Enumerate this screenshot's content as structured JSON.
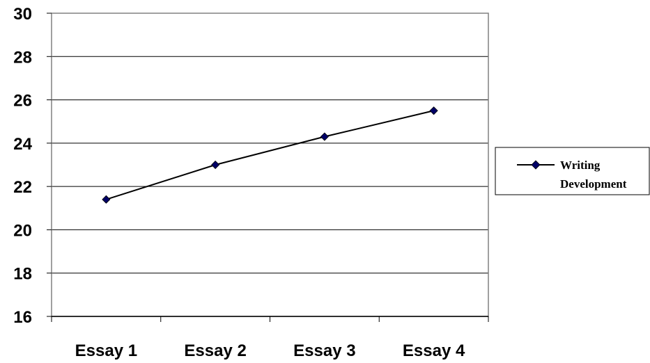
{
  "chart_data": {
    "type": "line",
    "categories": [
      "Essay 1",
      "Essay 2",
      "Essay 3",
      "Essay 4"
    ],
    "series": [
      {
        "name": "Writing Development",
        "values": [
          21.4,
          23.0,
          24.3,
          25.5
        ]
      }
    ],
    "ylim": [
      16,
      30
    ],
    "yticks": [
      16,
      18,
      20,
      22,
      24,
      26,
      28,
      30
    ],
    "grid": true,
    "legend_position": "right",
    "legend_label": [
      "Writing",
      "Development"
    ],
    "colors": {
      "line": "#000000",
      "marker": "#000066",
      "grid": "#000000"
    },
    "marker": "diamond"
  }
}
